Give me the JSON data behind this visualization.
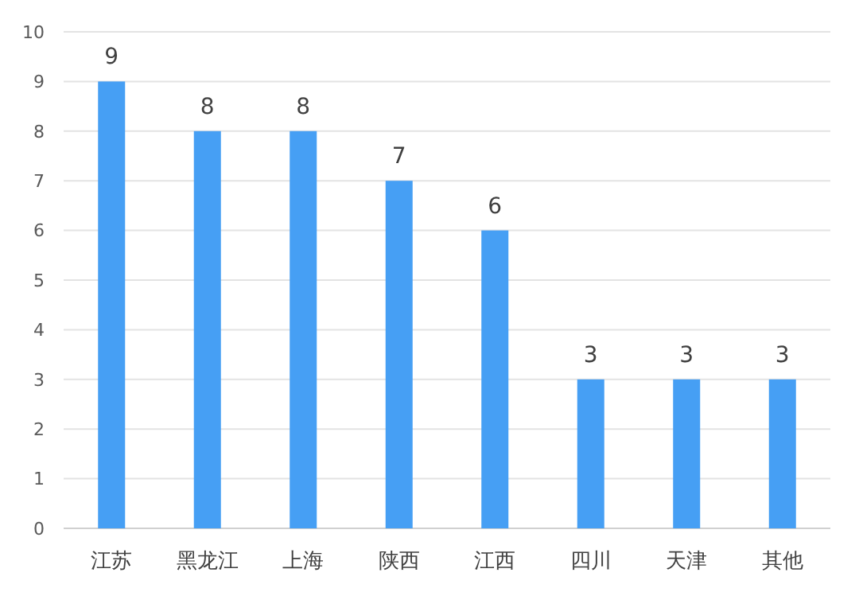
{
  "chart_data": {
    "type": "bar",
    "categories": [
      "江苏",
      "黑龙江",
      "上海",
      "陕西",
      "江西",
      "四川",
      "天津",
      "其他"
    ],
    "values": [
      9,
      8,
      8,
      7,
      6,
      3,
      3,
      3
    ],
    "color": "#469ff4",
    "ylim": [
      0,
      10
    ],
    "yticks": [
      0,
      1,
      2,
      3,
      4,
      5,
      6,
      7,
      8,
      9,
      10
    ],
    "grid": "y",
    "data_labels": true
  }
}
